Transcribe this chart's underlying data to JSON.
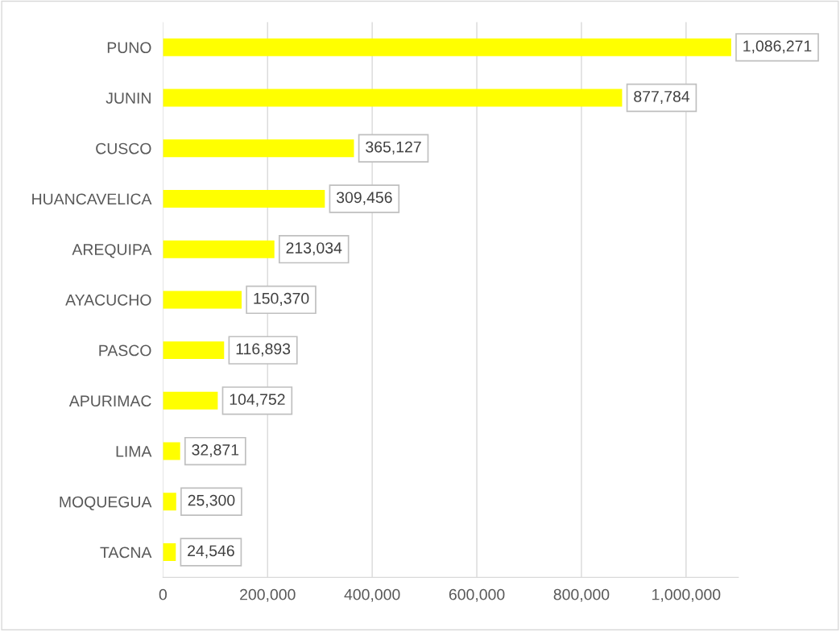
{
  "chart_data": {
    "type": "bar",
    "orientation": "horizontal",
    "categories": [
      "PUNO",
      "JUNIN",
      "CUSCO",
      "HUANCAVELICA",
      "AREQUIPA",
      "AYACUCHO",
      "PASCO",
      "APURIMAC",
      "LIMA",
      "MOQUEGUA",
      "TACNA"
    ],
    "values": [
      1086271,
      877784,
      365127,
      309456,
      213034,
      150370,
      116893,
      104752,
      32871,
      25300,
      24546
    ],
    "color": "#ffff00",
    "xlim": [
      0,
      1100000
    ],
    "xticks": [
      {
        "value": 0,
        "label": "0"
      },
      {
        "value": 200000,
        "label": "200,000"
      },
      {
        "value": 400000,
        "label": "400,000"
      },
      {
        "value": 600000,
        "label": "600,000"
      },
      {
        "value": 800000,
        "label": "800,000"
      },
      {
        "value": 1000000,
        "label": "1,000,000"
      }
    ],
    "grid": "x",
    "value_labels": [
      "1,086,271",
      "877,784",
      "365,127",
      "309,456",
      "213,034",
      "150,370",
      "116,893",
      "104,752",
      "32,871",
      "25,300",
      "24,546"
    ]
  }
}
